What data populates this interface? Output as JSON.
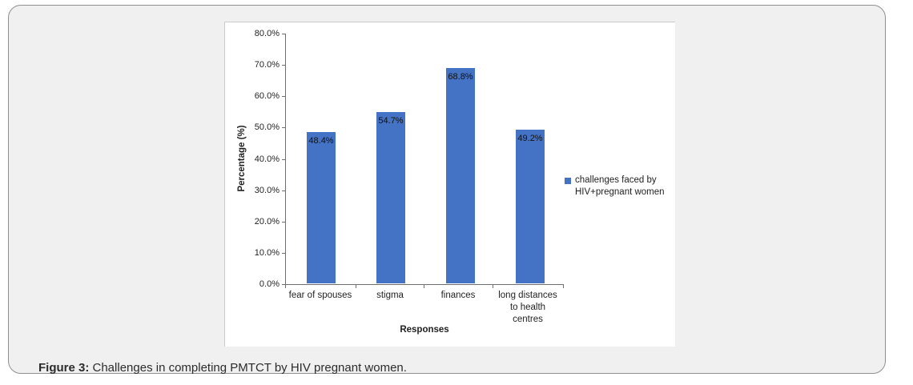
{
  "figure": {
    "caption_label": "Figure 3:",
    "caption_text": " Challenges in completing PMTCT by HIV pregnant women."
  },
  "chart_data": {
    "type": "bar",
    "title": "",
    "xlabel": "Responses",
    "ylabel": "Percentage (%)",
    "categories": [
      "fear of spouses",
      "stigma",
      "finances",
      "long distances to health centres"
    ],
    "categories_display": [
      "fear of spouses",
      "stigma",
      "finances",
      "long distances\nto health\ncentres"
    ],
    "series": [
      {
        "name": "challenges faced by HIV+pregnant women",
        "values": [
          48.4,
          54.7,
          68.8,
          49.2
        ]
      }
    ],
    "value_labels": [
      "48.4%",
      "54.7%",
      "68.8%",
      "49.2%"
    ],
    "ylim": [
      0,
      80
    ],
    "ytick_interval": 10,
    "ytick_labels": [
      "80.0%",
      "70.0%",
      "60.0%",
      "50.0%",
      "40.0%",
      "30.0%",
      "20.0%",
      "10.0%",
      "0.0%"
    ],
    "grid": false,
    "legend_position": "right",
    "bar_color": "#4472c4"
  },
  "legend": {
    "label_display": "challenges faced by\nHIV+pregnant women",
    "swatch_color": "#4472c4"
  }
}
